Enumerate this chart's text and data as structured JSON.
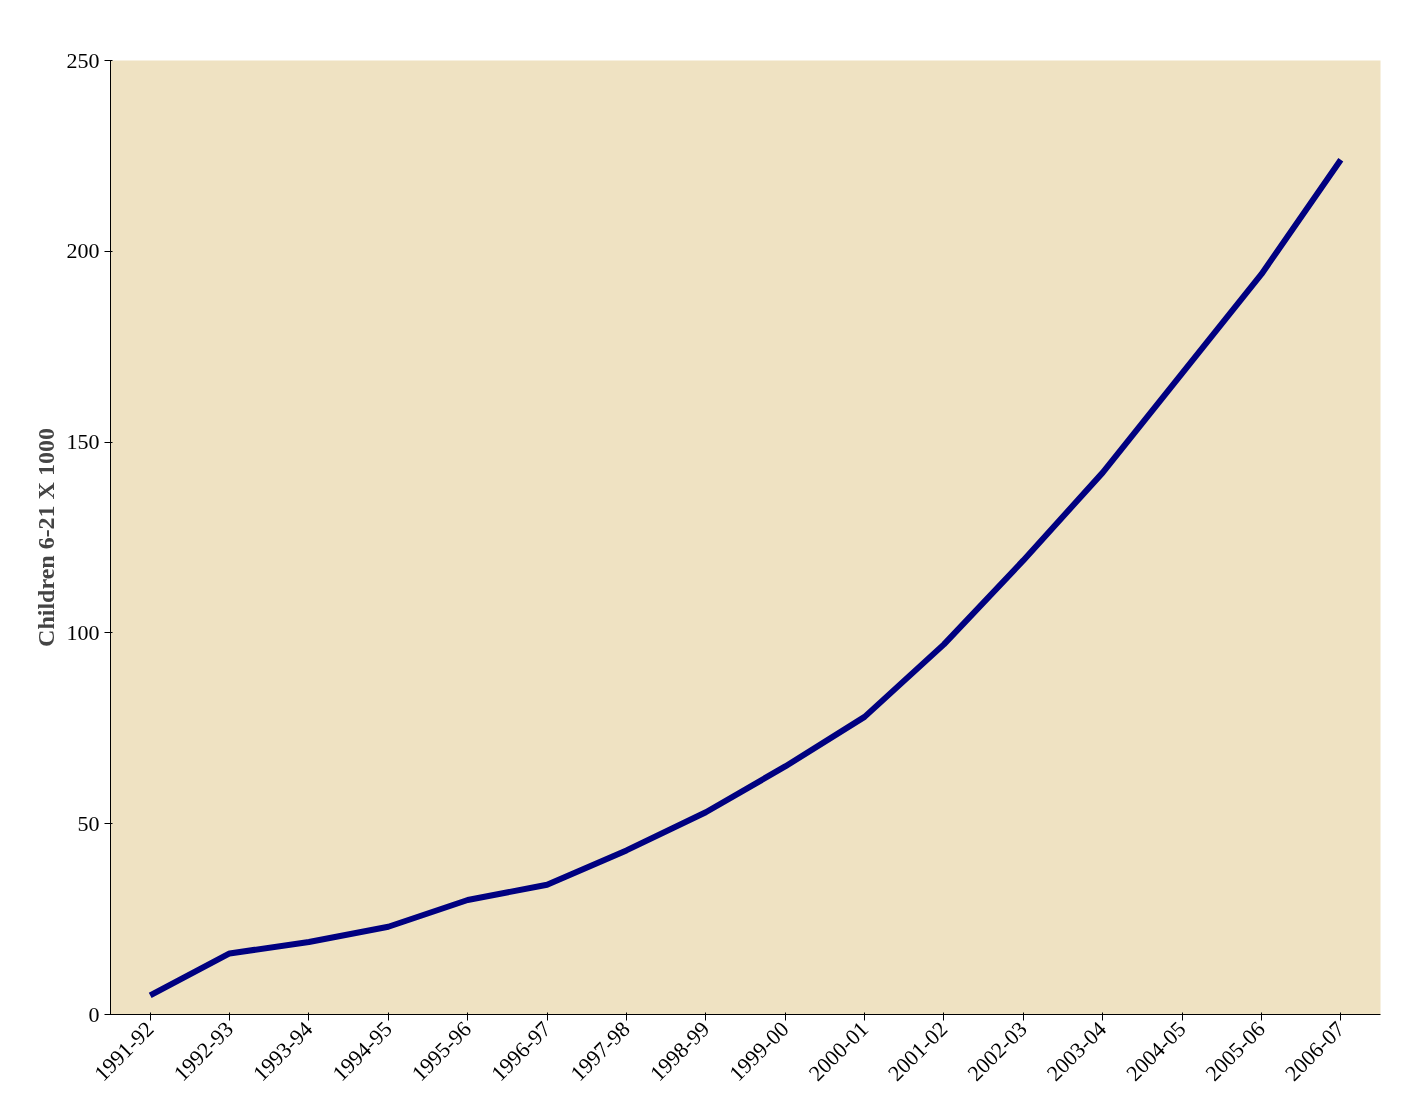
{
  "chart_data": {
    "type": "line",
    "ylabel": "Children 6-21 X 1000",
    "categories": [
      "1991-92",
      "1992-93",
      "1993-94",
      "1994-95",
      "1995-96",
      "1996-97",
      "1997-98",
      "1998-99",
      "1999-00",
      "2000-01",
      "2001-02",
      "2002-03",
      "2003-04",
      "2004-05",
      "2005-06",
      "2006-07"
    ],
    "series": [
      {
        "color": "#000080",
        "values": [
          5,
          16,
          19,
          23,
          30,
          34,
          43,
          53,
          65,
          78,
          97,
          119,
          142,
          168,
          194,
          224
        ]
      }
    ],
    "ylim": [
      0,
      250
    ],
    "yticks": [
      0,
      50,
      100,
      150,
      200,
      250
    ],
    "grid": false,
    "marker": "none",
    "line_style": "solid"
  }
}
